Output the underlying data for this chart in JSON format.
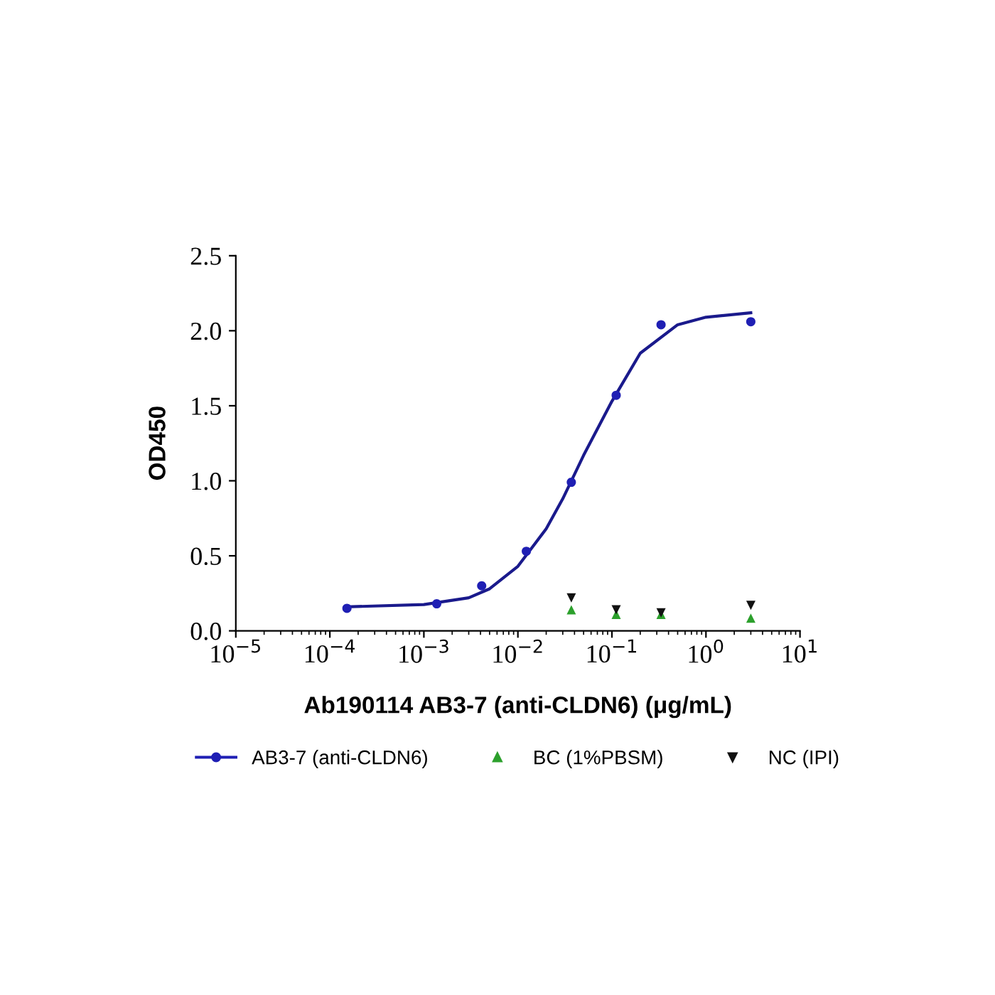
{
  "chart_data": {
    "type": "scatter",
    "xlabel": "Ab190114 AB3-7 (anti-CLDN6) (μg/mL)",
    "ylabel": "OD450",
    "log": "x",
    "grid": false,
    "legend": "bottom",
    "xlim": [
      1e-05,
      10
    ],
    "ylim": [
      0,
      2.5
    ],
    "xticks": [
      {
        "value": 1e-05,
        "label": "10$^{−5}$"
      },
      {
        "value": 0.0001,
        "label": "10$^{−4}$"
      },
      {
        "value": 0.001,
        "label": "10$^{−3}$"
      },
      {
        "value": 0.01,
        "label": "10$^{−2}$"
      },
      {
        "value": 0.1,
        "label": "10$^{−1}$"
      },
      {
        "value": 1,
        "label": "10$^{0}$"
      },
      {
        "value": 10,
        "label": "10$^{1}$"
      }
    ],
    "yticks": [
      {
        "value": 0,
        "label": "0.0"
      },
      {
        "value": 0.5,
        "label": "0.5"
      },
      {
        "value": 1,
        "label": "1.0"
      },
      {
        "value": 1.5,
        "label": "1.5"
      },
      {
        "value": 2,
        "label": "2.0"
      },
      {
        "value": 2.5,
        "label": "2.5"
      }
    ],
    "series": [
      {
        "type": "line",
        "color": "#1a1a8c",
        "marker": "none",
        "x": [
          0.00015,
          0.001,
          0.003,
          0.005,
          0.01,
          0.02,
          0.03,
          0.05,
          0.1,
          0.2,
          0.5,
          1,
          3
        ],
        "values": [
          0.16,
          0.175,
          0.22,
          0.28,
          0.43,
          0.68,
          0.88,
          1.17,
          1.53,
          1.85,
          2.04,
          2.09,
          2.12
        ]
      },
      {
        "name": "AB3-7 (anti-CLDN6)",
        "color": "#1f1fb4",
        "marker": "circle",
        "x": [
          0.000152,
          0.00137,
          0.00412,
          0.0123,
          0.037,
          0.111,
          0.333,
          3.0
        ],
        "values": [
          0.15,
          0.18,
          0.3,
          0.53,
          0.99,
          1.57,
          2.04,
          2.06
        ]
      },
      {
        "name": "BC (1%PBSM)",
        "color": "#2ca02c",
        "marker": "triangle",
        "x": [
          0.037,
          0.111,
          0.333,
          3.0
        ],
        "values": [
          0.14,
          0.11,
          0.11,
          0.085
        ]
      },
      {
        "name": "NC (IPI)",
        "color": "#111111",
        "marker": "triangle_down",
        "x": [
          0.037,
          0.111,
          0.333,
          3.0
        ],
        "values": [
          0.22,
          0.14,
          0.12,
          0.17
        ]
      }
    ]
  }
}
